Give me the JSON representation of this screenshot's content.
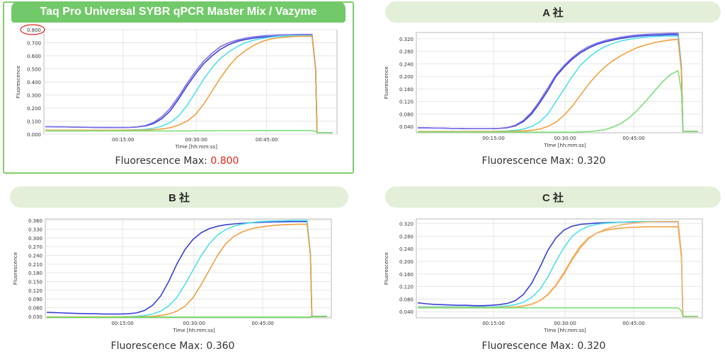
{
  "colors": {
    "brand_green": "#72c96a",
    "header_light": "#e3efd8",
    "highlight_red": "#e1251b",
    "series": {
      "blue": "#3a3fd6",
      "purple": "#7b6fe8",
      "cyan": "#4ee0ea",
      "orange": "#f0a040",
      "green": "#7de07a"
    }
  },
  "panels": [
    {
      "title": "Taq Pro Universal SYBR qPCR Master Mix / Vazyme",
      "caption_label": "Fluorescence Max:",
      "caption_value": "0.800",
      "chart_data": {
        "type": "line",
        "ylabel": "Fluorescence",
        "xlabel": "Time [hh:mm:ss]",
        "x_ticks": [
          "00:15:00",
          "00:30:00",
          "00:45:00"
        ],
        "y_ticks": [
          "0.000",
          "0.100",
          "0.200",
          "0.300",
          "0.400",
          "0.500",
          "0.600",
          "0.700",
          "0.800"
        ],
        "ylim": [
          0,
          0.8
        ],
        "grid": true,
        "series": [
          {
            "color": "#3a3fd6",
            "values": [
              0.058,
              0.057,
              0.056,
              0.055,
              0.054,
              0.053,
              0.052,
              0.052,
              0.051,
              0.051,
              0.052,
              0.055,
              0.063,
              0.082,
              0.12,
              0.18,
              0.27,
              0.37,
              0.46,
              0.54,
              0.6,
              0.65,
              0.685,
              0.71,
              0.725,
              0.735,
              0.742,
              0.747,
              0.75,
              0.752,
              0.753,
              0.754,
              0.754
            ]
          },
          {
            "color": "#7b6fe8",
            "values": [
              0.058,
              0.057,
              0.056,
              0.055,
              0.054,
              0.053,
              0.052,
              0.052,
              0.051,
              0.051,
              0.052,
              0.056,
              0.066,
              0.09,
              0.135,
              0.2,
              0.29,
              0.39,
              0.48,
              0.56,
              0.62,
              0.67,
              0.7,
              0.72,
              0.735,
              0.745,
              0.752,
              0.757,
              0.76,
              0.762,
              0.763,
              0.764,
              0.764
            ]
          },
          {
            "color": "#4ee0ea",
            "values": [
              0.03,
              0.03,
              0.03,
              0.03,
              0.03,
              0.03,
              0.03,
              0.03,
              0.03,
              0.031,
              0.032,
              0.034,
              0.038,
              0.046,
              0.062,
              0.09,
              0.14,
              0.22,
              0.32,
              0.42,
              0.51,
              0.58,
              0.63,
              0.67,
              0.7,
              0.72,
              0.733,
              0.742,
              0.748,
              0.752,
              0.754,
              0.755,
              0.755
            ]
          },
          {
            "color": "#f0a040",
            "values": [
              0.03,
              0.03,
              0.03,
              0.03,
              0.03,
              0.03,
              0.03,
              0.03,
              0.03,
              0.03,
              0.03,
              0.031,
              0.032,
              0.035,
              0.04,
              0.05,
              0.07,
              0.1,
              0.15,
              0.23,
              0.33,
              0.43,
              0.52,
              0.59,
              0.64,
              0.68,
              0.71,
              0.728,
              0.738,
              0.744,
              0.748,
              0.75,
              0.75
            ]
          },
          {
            "color": "#7de07a",
            "values": [
              0.025,
              0.025,
              0.025,
              0.025,
              0.025,
              0.025,
              0.025,
              0.025,
              0.025,
              0.025,
              0.025,
              0.025,
              0.025,
              0.025,
              0.025,
              0.025,
              0.025,
              0.025,
              0.026,
              0.026,
              0.026,
              0.027,
              0.027,
              0.027,
              0.027,
              0.028,
              0.028,
              0.028,
              0.028,
              0.028,
              0.028,
              0.028,
              0.028
            ]
          }
        ]
      }
    },
    {
      "title": "A 社",
      "caption_label": "Fluorescence Max:",
      "caption_value": "0.320",
      "chart_data": {
        "type": "line",
        "ylabel": "Fluorescence",
        "xlabel": "Time [hh:mm:ss]",
        "x_ticks": [
          "00:15:00",
          "00:30:00",
          "00:45:00"
        ],
        "y_ticks": [
          "0.040",
          "0.080",
          "0.120",
          "0.160",
          "0.200",
          "0.240",
          "0.280",
          "0.320"
        ],
        "ylim": [
          0.02,
          0.34
        ],
        "grid": true,
        "series": [
          {
            "color": "#3a3fd6",
            "values": [
              0.036,
              0.036,
              0.035,
              0.035,
              0.034,
              0.034,
              0.033,
              0.033,
              0.033,
              0.033,
              0.034,
              0.036,
              0.042,
              0.056,
              0.08,
              0.115,
              0.155,
              0.2,
              0.23,
              0.255,
              0.275,
              0.29,
              0.302,
              0.31,
              0.316,
              0.321,
              0.325,
              0.328,
              0.33,
              0.331,
              0.332,
              0.333,
              0.333
            ]
          },
          {
            "color": "#7b6fe8",
            "values": [
              0.036,
              0.036,
              0.035,
              0.035,
              0.034,
              0.034,
              0.033,
              0.033,
              0.033,
              0.033,
              0.034,
              0.037,
              0.044,
              0.06,
              0.086,
              0.122,
              0.163,
              0.205,
              0.235,
              0.26,
              0.28,
              0.295,
              0.306,
              0.314,
              0.32,
              0.325,
              0.329,
              0.332,
              0.334,
              0.335,
              0.336,
              0.337,
              0.337
            ]
          },
          {
            "color": "#4ee0ea",
            "values": [
              0.024,
              0.024,
              0.024,
              0.024,
              0.024,
              0.024,
              0.024,
              0.024,
              0.024,
              0.024,
              0.025,
              0.026,
              0.028,
              0.032,
              0.04,
              0.055,
              0.08,
              0.12,
              0.16,
              0.2,
              0.235,
              0.26,
              0.28,
              0.295,
              0.305,
              0.313,
              0.318,
              0.322,
              0.325,
              0.327,
              0.328,
              0.329,
              0.329
            ]
          },
          {
            "color": "#f0a040",
            "values": [
              0.024,
              0.024,
              0.024,
              0.024,
              0.024,
              0.024,
              0.024,
              0.024,
              0.024,
              0.024,
              0.024,
              0.024,
              0.025,
              0.026,
              0.028,
              0.032,
              0.04,
              0.054,
              0.076,
              0.105,
              0.14,
              0.175,
              0.205,
              0.23,
              0.25,
              0.266,
              0.28,
              0.292,
              0.3,
              0.307,
              0.312,
              0.316,
              0.318
            ]
          },
          {
            "color": "#7de07a",
            "values": [
              0.022,
              0.022,
              0.022,
              0.022,
              0.022,
              0.022,
              0.022,
              0.022,
              0.022,
              0.022,
              0.022,
              0.022,
              0.022,
              0.022,
              0.022,
              0.022,
              0.022,
              0.022,
              0.022,
              0.022,
              0.023,
              0.024,
              0.026,
              0.03,
              0.038,
              0.05,
              0.068,
              0.092,
              0.12,
              0.15,
              0.18,
              0.205,
              0.218
            ]
          }
        ]
      }
    },
    {
      "title": "B 社",
      "caption_label": "Fluorescence Max:",
      "caption_value": "0.360",
      "chart_data": {
        "type": "line",
        "ylabel": "Fluorescence",
        "xlabel": "Time [hh:mm:ss]",
        "x_ticks": [
          "00:15:00",
          "00:30:00",
          "00:45:00"
        ],
        "y_ticks": [
          "0.030",
          "0.060",
          "0.090",
          "0.120",
          "0.150",
          "0.180",
          "0.210",
          "0.240",
          "0.270",
          "0.300",
          "0.330",
          "0.360"
        ],
        "ylim": [
          0.025,
          0.365
        ],
        "grid": true,
        "series": [
          {
            "color": "#3a3fd6",
            "values": [
              0.044,
              0.043,
              0.042,
              0.041,
              0.04,
              0.039,
              0.039,
              0.038,
              0.038,
              0.038,
              0.039,
              0.042,
              0.05,
              0.068,
              0.1,
              0.15,
              0.21,
              0.26,
              0.295,
              0.318,
              0.332,
              0.34,
              0.345,
              0.348,
              0.35,
              0.352,
              0.353,
              0.354,
              0.355,
              0.355,
              0.356,
              0.356,
              0.356
            ]
          },
          {
            "color": "#4ee0ea",
            "values": [
              0.028,
              0.028,
              0.028,
              0.028,
              0.028,
              0.028,
              0.028,
              0.028,
              0.028,
              0.028,
              0.029,
              0.03,
              0.033,
              0.038,
              0.048,
              0.066,
              0.095,
              0.14,
              0.19,
              0.24,
              0.28,
              0.31,
              0.328,
              0.34,
              0.347,
              0.352,
              0.355,
              0.357,
              0.358,
              0.359,
              0.36,
              0.36,
              0.36
            ]
          },
          {
            "color": "#f0a040",
            "values": [
              0.028,
              0.028,
              0.028,
              0.028,
              0.028,
              0.028,
              0.028,
              0.028,
              0.028,
              0.028,
              0.028,
              0.028,
              0.029,
              0.03,
              0.033,
              0.038,
              0.048,
              0.065,
              0.095,
              0.14,
              0.19,
              0.24,
              0.28,
              0.305,
              0.32,
              0.33,
              0.336,
              0.34,
              0.343,
              0.345,
              0.346,
              0.347,
              0.347
            ]
          },
          {
            "color": "#66dd55",
            "values": [
              0.027,
              0.027,
              0.027,
              0.027,
              0.027,
              0.027,
              0.027,
              0.027,
              0.027,
              0.027,
              0.027,
              0.027,
              0.027,
              0.027,
              0.027,
              0.027,
              0.027,
              0.027,
              0.027,
              0.027,
              0.027,
              0.027,
              0.027,
              0.027,
              0.027,
              0.027,
              0.027,
              0.027,
              0.027,
              0.027,
              0.027,
              0.027,
              0.027
            ]
          }
        ]
      }
    },
    {
      "title": "C 社",
      "caption_label": "Fluorescence Max:",
      "caption_value": "0.320",
      "chart_data": {
        "type": "line",
        "ylabel": "Fluorescence",
        "xlabel": "Time [hh:mm:ss]",
        "x_ticks": [
          "00:15:00",
          "00:30:00",
          "00:45:00"
        ],
        "y_ticks": [
          "0.040",
          "0.080",
          "0.120",
          "0.160",
          "0.200",
          "0.240",
          "0.280",
          "0.320"
        ],
        "ylim": [
          0.02,
          0.335
        ],
        "grid": true,
        "series": [
          {
            "color": "#3a3fd6",
            "values": [
              0.068,
              0.065,
              0.063,
              0.062,
              0.061,
              0.06,
              0.06,
              0.059,
              0.059,
              0.06,
              0.062,
              0.066,
              0.075,
              0.095,
              0.13,
              0.18,
              0.235,
              0.275,
              0.3,
              0.312,
              0.318,
              0.32,
              0.322,
              0.323,
              0.324,
              0.325,
              0.325,
              0.326,
              0.326,
              0.326,
              0.326,
              0.326,
              0.326
            ]
          },
          {
            "color": "#4ee0ea",
            "values": [
              0.055,
              0.055,
              0.055,
              0.055,
              0.055,
              0.055,
              0.055,
              0.055,
              0.055,
              0.055,
              0.056,
              0.058,
              0.062,
              0.07,
              0.085,
              0.11,
              0.15,
              0.2,
              0.245,
              0.28,
              0.3,
              0.312,
              0.318,
              0.321,
              0.323,
              0.325,
              0.326,
              0.327,
              0.327,
              0.327,
              0.327,
              0.327,
              0.327
            ]
          },
          {
            "color": "#f0a040",
            "values": [
              0.053,
              0.053,
              0.053,
              0.053,
              0.053,
              0.053,
              0.053,
              0.053,
              0.053,
              0.053,
              0.053,
              0.054,
              0.055,
              0.058,
              0.064,
              0.075,
              0.095,
              0.125,
              0.165,
              0.21,
              0.248,
              0.275,
              0.29,
              0.298,
              0.303,
              0.306,
              0.308,
              0.309,
              0.31,
              0.31,
              0.31,
              0.31,
              0.31
            ]
          },
          {
            "color": "#f6b56a",
            "values": [
              0.052,
              0.052,
              0.052,
              0.052,
              0.052,
              0.052,
              0.052,
              0.052,
              0.052,
              0.052,
              0.052,
              0.053,
              0.054,
              0.057,
              0.063,
              0.074,
              0.093,
              0.122,
              0.16,
              0.205,
              0.243,
              0.272,
              0.29,
              0.302,
              0.31,
              0.316,
              0.32,
              0.323,
              0.325,
              0.326,
              0.327,
              0.327,
              0.327
            ]
          },
          {
            "color": "#7de07a",
            "values": [
              0.052,
              0.052,
              0.052,
              0.052,
              0.052,
              0.052,
              0.052,
              0.052,
              0.052,
              0.052,
              0.052,
              0.052,
              0.052,
              0.052,
              0.052,
              0.052,
              0.052,
              0.052,
              0.052,
              0.052,
              0.052,
              0.052,
              0.052,
              0.052,
              0.052,
              0.052,
              0.052,
              0.052,
              0.052,
              0.052,
              0.052,
              0.052,
              0.052
            ]
          }
        ]
      }
    }
  ]
}
